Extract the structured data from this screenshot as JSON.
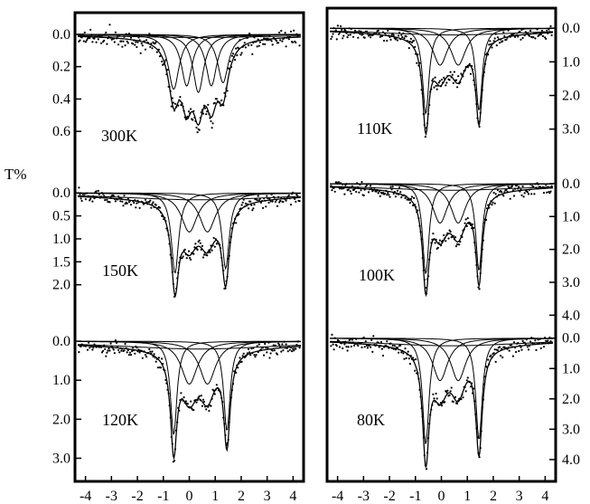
{
  "figure": {
    "ylabel": "T%",
    "xlabel": "",
    "x_ticks": [
      -4,
      -3,
      -2,
      -1,
      0,
      1,
      2,
      3,
      4
    ],
    "colors": {
      "ink": "#000000",
      "background": "#ffffff"
    }
  },
  "chart_data": [
    {
      "type": "line",
      "panel": "left",
      "label": "300K",
      "xlim": [
        -4.3,
        4.3
      ],
      "ylim": [
        -0.1,
        0.75
      ],
      "y_inverted": true,
      "y_ticks": [
        0.0,
        0.2,
        0.4,
        0.6
      ],
      "y_tick_labels": [
        "0.0",
        "0.2",
        "0.4",
        "0.6"
      ],
      "components": [
        {
          "center": -0.6,
          "depth": 0.34,
          "width": 0.5
        },
        {
          "center": -0.1,
          "depth": 0.32,
          "width": 0.5
        },
        {
          "center": 0.35,
          "depth": 0.36,
          "width": 0.5
        },
        {
          "center": 0.85,
          "depth": 0.32,
          "width": 0.5
        },
        {
          "center": 1.3,
          "depth": 0.3,
          "width": 0.5
        },
        {
          "center": 0.3,
          "depth": 0.02,
          "width": 8.0
        }
      ],
      "noise": 0.025
    },
    {
      "type": "line",
      "panel": "left",
      "label": "150K",
      "xlim": [
        -4.3,
        4.3
      ],
      "ylim": [
        -0.3,
        2.4
      ],
      "y_inverted": true,
      "y_ticks": [
        0.0,
        0.5,
        1.0,
        1.5,
        2.0
      ],
      "y_tick_labels": [
        "0.0",
        "0.5",
        "1.0",
        "1.5",
        "2.0"
      ],
      "components": [
        {
          "center": -0.55,
          "depth": 1.75,
          "width": 0.34
        },
        {
          "center": 0.0,
          "depth": 0.85,
          "width": 0.75
        },
        {
          "center": 0.7,
          "depth": 0.85,
          "width": 0.75
        },
        {
          "center": 1.4,
          "depth": 1.65,
          "width": 0.34
        },
        {
          "center": 0.4,
          "depth": 0.15,
          "width": 8.0
        }
      ],
      "noise": 0.06
    },
    {
      "type": "line",
      "panel": "left",
      "label": "120K",
      "xlim": [
        -4.3,
        4.3
      ],
      "ylim": [
        -0.35,
        3.5
      ],
      "y_inverted": true,
      "y_ticks": [
        0.0,
        1.0,
        2.0,
        3.0
      ],
      "y_tick_labels": [
        "0.0",
        "1.0",
        "2.0",
        "3.0"
      ],
      "components": [
        {
          "center": -0.6,
          "depth": 2.4,
          "width": 0.3
        },
        {
          "center": 0.0,
          "depth": 1.1,
          "width": 0.75
        },
        {
          "center": 0.7,
          "depth": 1.1,
          "width": 0.75
        },
        {
          "center": 1.45,
          "depth": 2.3,
          "width": 0.3
        },
        {
          "center": 0.4,
          "depth": 0.2,
          "width": 8.0
        }
      ],
      "noise": 0.08
    },
    {
      "type": "line",
      "panel": "right",
      "label": "110K",
      "xlim": [
        -4.3,
        4.3
      ],
      "ylim": [
        -0.3,
        3.6
      ],
      "y_inverted": true,
      "y_ticks": [
        0.0,
        1.0,
        2.0,
        3.0
      ],
      "y_tick_labels": [
        "0.0",
        "1.0",
        "2.0",
        "3.0"
      ],
      "components": [
        {
          "center": -0.6,
          "depth": 2.55,
          "width": 0.3
        },
        {
          "center": -0.05,
          "depth": 1.1,
          "width": 0.7
        },
        {
          "center": 0.65,
          "depth": 1.1,
          "width": 0.7
        },
        {
          "center": 1.45,
          "depth": 2.45,
          "width": 0.3
        },
        {
          "center": 0.4,
          "depth": 0.2,
          "width": 8.0
        }
      ],
      "noise": 0.08
    },
    {
      "type": "line",
      "panel": "right",
      "label": "100K",
      "xlim": [
        -4.3,
        4.3
      ],
      "ylim": [
        -0.3,
        4.1
      ],
      "y_inverted": true,
      "y_ticks": [
        0.0,
        1.0,
        2.0,
        3.0,
        4.0
      ],
      "y_tick_labels": [
        "0.0",
        "1.0",
        "2.0",
        "3.0",
        "4.0"
      ],
      "components": [
        {
          "center": -0.6,
          "depth": 2.75,
          "width": 0.3
        },
        {
          "center": -0.05,
          "depth": 1.2,
          "width": 0.7
        },
        {
          "center": 0.65,
          "depth": 1.2,
          "width": 0.7
        },
        {
          "center": 1.45,
          "depth": 2.65,
          "width": 0.3
        },
        {
          "center": 0.4,
          "depth": 0.2,
          "width": 8.0
        }
      ],
      "noise": 0.09
    },
    {
      "type": "line",
      "panel": "right",
      "label": "80K",
      "xlim": [
        -4.3,
        4.3
      ],
      "ylim": [
        -0.35,
        4.6
      ],
      "y_inverted": true,
      "y_ticks": [
        0.0,
        1.0,
        2.0,
        3.0,
        4.0
      ],
      "y_tick_labels": [
        "0.0",
        "1.0",
        "2.0",
        "3.0",
        "4.0"
      ],
      "components": [
        {
          "center": -0.6,
          "depth": 3.5,
          "width": 0.3
        },
        {
          "center": -0.05,
          "depth": 1.4,
          "width": 0.7
        },
        {
          "center": 0.65,
          "depth": 1.4,
          "width": 0.7
        },
        {
          "center": 1.45,
          "depth": 3.35,
          "width": 0.3
        },
        {
          "center": 0.4,
          "depth": 0.25,
          "width": 8.0
        }
      ],
      "noise": 0.1
    }
  ]
}
